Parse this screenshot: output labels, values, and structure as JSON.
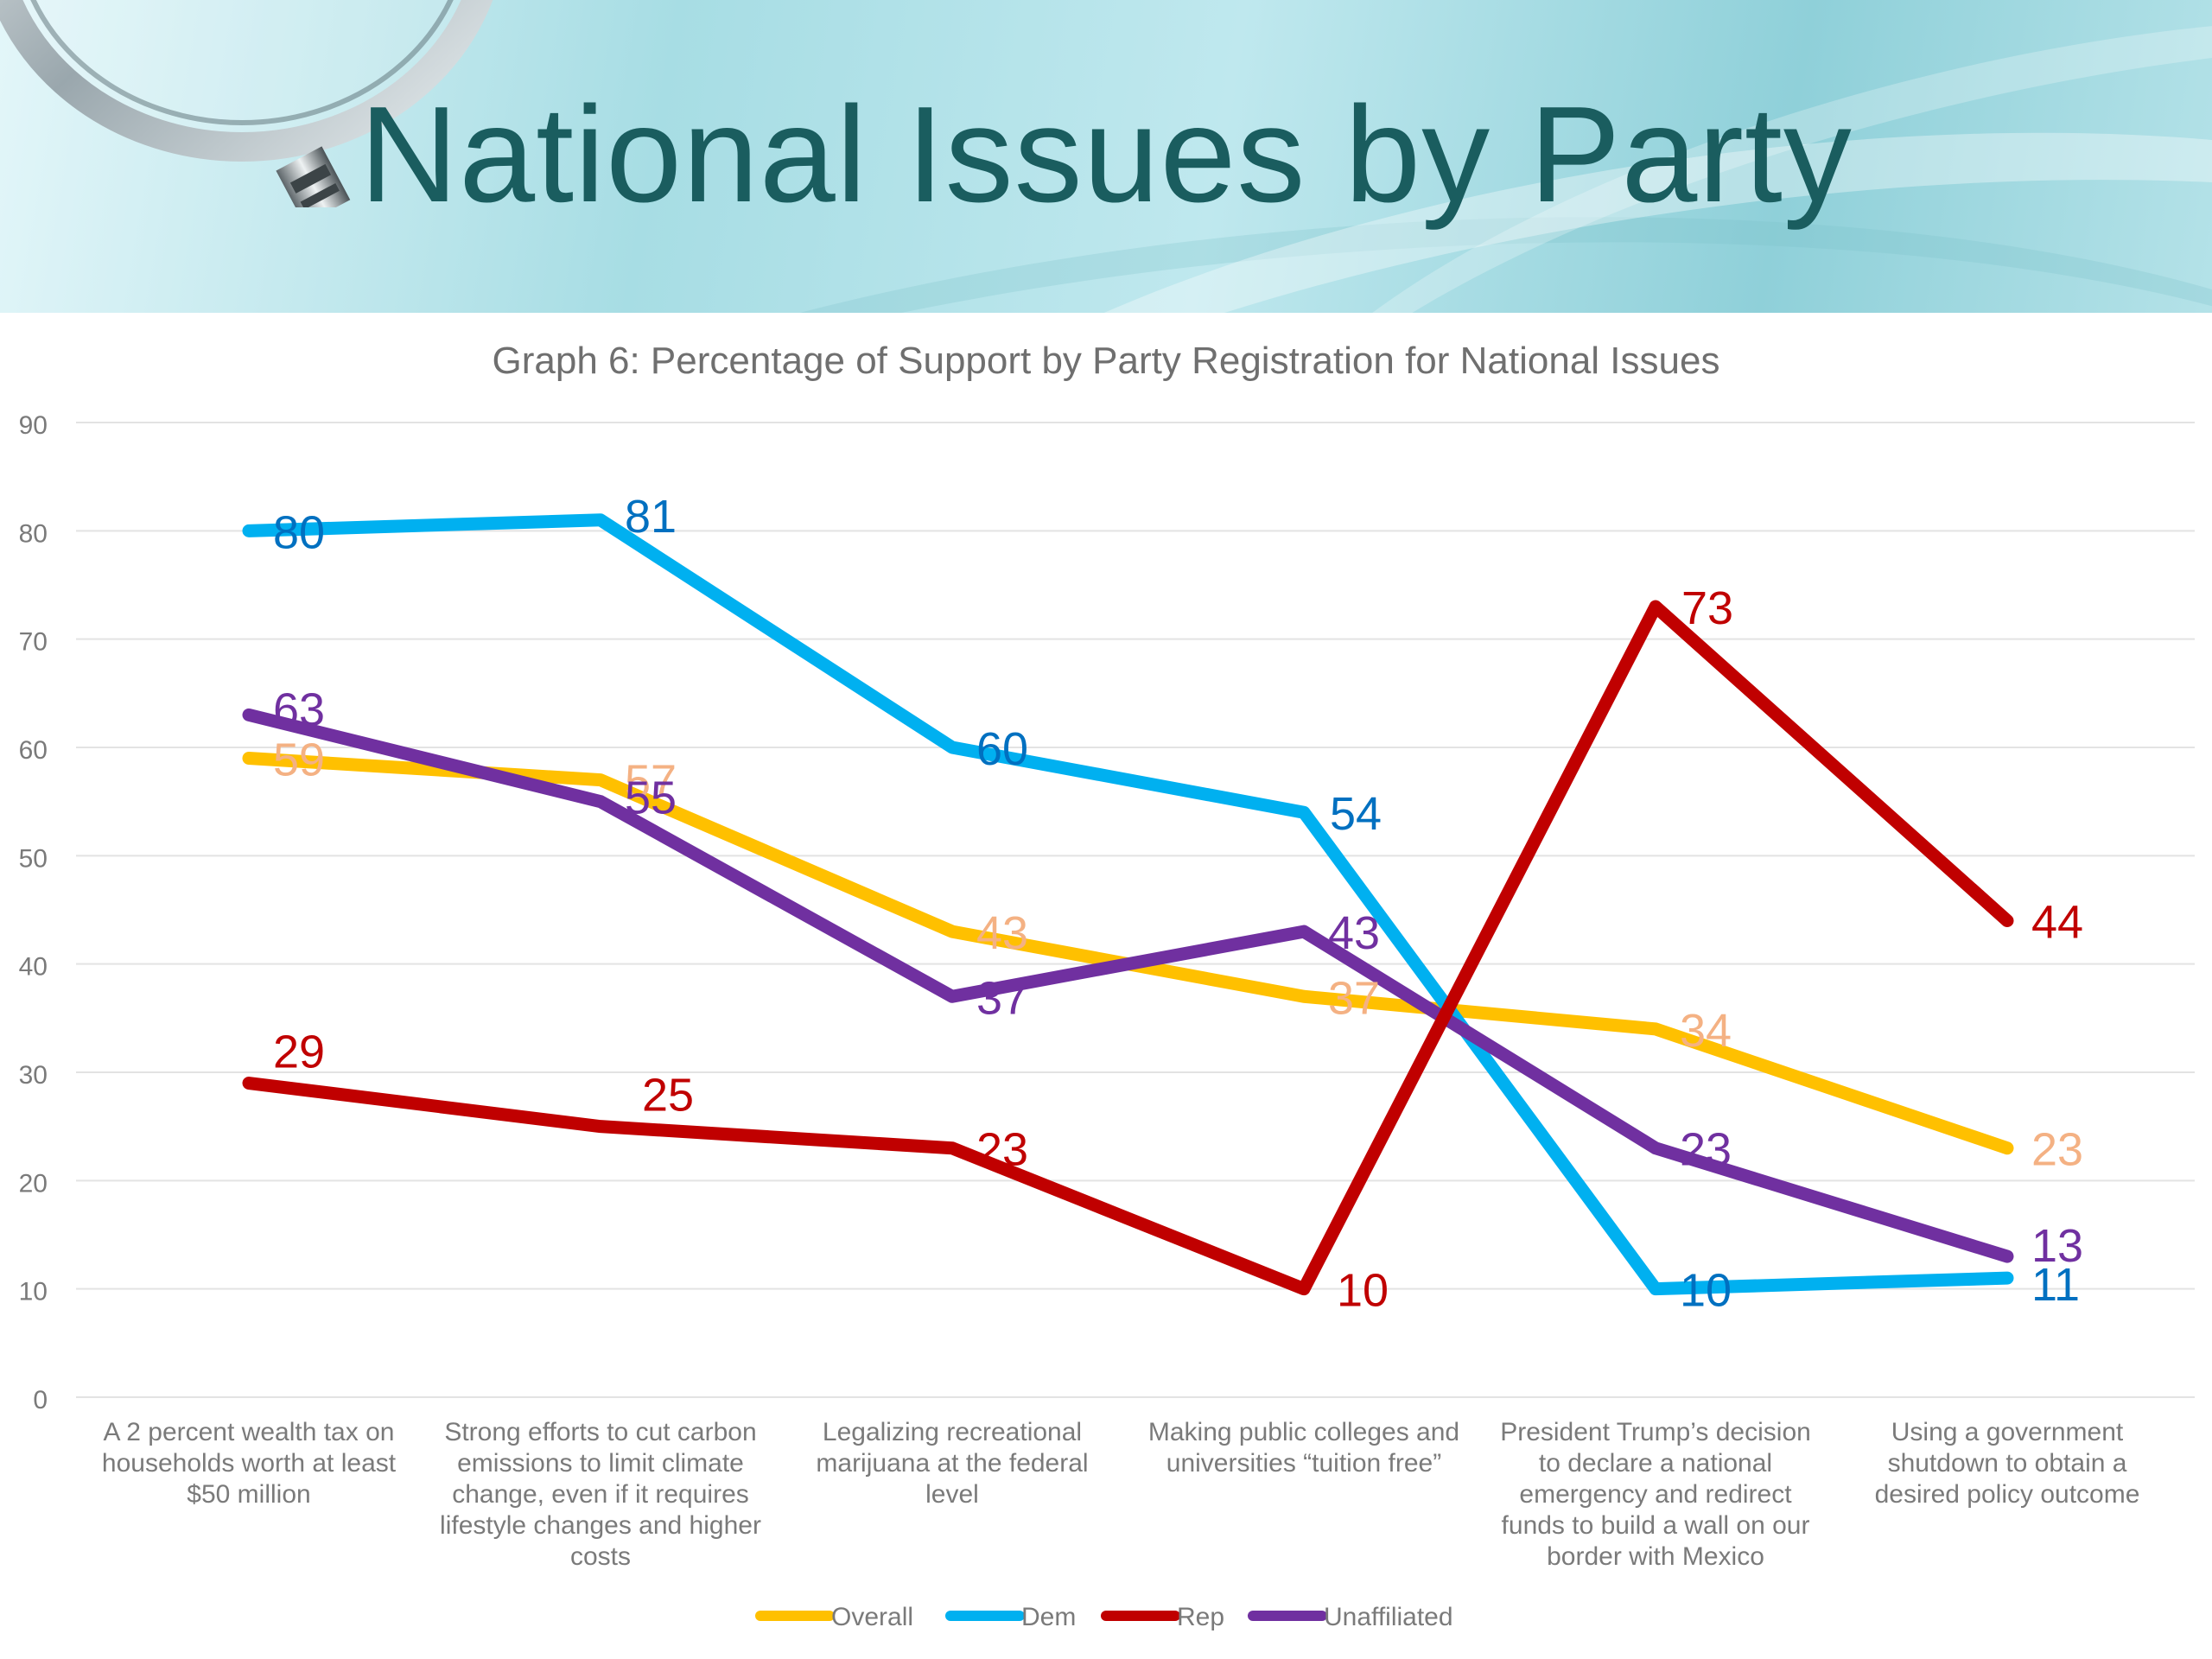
{
  "slide": {
    "title": "National Issues by Party"
  },
  "colors": {
    "Overall": "#FFC000",
    "Dem": "#00B0F0",
    "Rep": "#C00000",
    "Unaffiliated": "#7030A0",
    "label_Overall": "#F4B183",
    "label_Dem": "#0070C0",
    "label_Rep": "#C00000",
    "label_Unaffiliated": "#7030A0",
    "title_text": "#1a5d5f"
  },
  "chart_data": {
    "type": "line",
    "title": "Graph 6: Percentage of Support by Party Registration for National Issues",
    "xlabel": "",
    "ylabel": "",
    "ylim": [
      0,
      90
    ],
    "yticks": [
      0,
      10,
      20,
      30,
      40,
      50,
      60,
      70,
      80,
      90
    ],
    "grid": true,
    "legend_position": "bottom-center",
    "categories": [
      "A 2 percent wealth tax on households worth at least $50 million",
      "Strong efforts to cut carbon emissions to limit climate change, even if it requires lifestyle changes and higher costs",
      "Legalizing recreational marijuana at the federal level",
      "Making public colleges and universities “tuition free”",
      "President Trump’s decision to declare a national emergency and redirect funds to build a wall on our border with Mexico",
      "Using a government shutdown to obtain a desired policy outcome"
    ],
    "category_lines": [
      [
        "A 2 percent wealth tax on",
        "households worth at least",
        "$50 million"
      ],
      [
        "Strong efforts to cut carbon",
        "emissions to limit climate",
        "change, even if it requires",
        "lifestyle changes and higher",
        "costs"
      ],
      [
        "Legalizing recreational",
        "marijuana at the federal",
        "level"
      ],
      [
        "Making public colleges and",
        "universities “tuition free”"
      ],
      [
        "President Trump’s decision",
        "to declare a national",
        "emergency and redirect",
        "funds to build a wall on our",
        "border with Mexico"
      ],
      [
        "Using a government",
        "shutdown to obtain a",
        "desired policy outcome"
      ]
    ],
    "series": [
      {
        "name": "Overall",
        "values": [
          59,
          57,
          43,
          37,
          34,
          23
        ]
      },
      {
        "name": "Dem",
        "values": [
          80,
          81,
          60,
          54,
          10,
          11
        ]
      },
      {
        "name": "Rep",
        "values": [
          29,
          25,
          23,
          10,
          73,
          44
        ]
      },
      {
        "name": "Unaffiliated",
        "values": [
          63,
          55,
          37,
          43,
          23,
          13
        ]
      }
    ]
  }
}
